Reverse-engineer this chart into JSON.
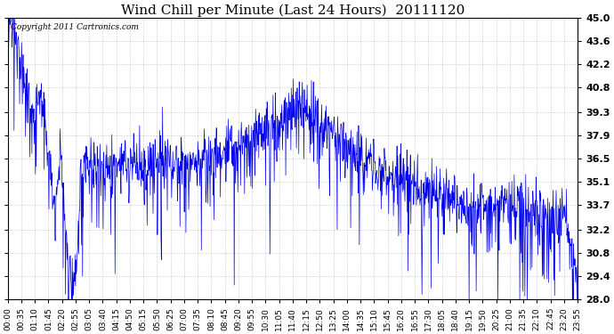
{
  "title": "Wind Chill per Minute (Last 24 Hours)  20111120",
  "copyright_text": "Copyright 2011 Cartronics.com",
  "line_color": "#0000ee",
  "background_color": "#ffffff",
  "plot_bg_color": "#ffffff",
  "grid_color": "#bbbbbb",
  "ylim": [
    28.0,
    45.0
  ],
  "yticks": [
    28.0,
    29.4,
    30.8,
    32.2,
    33.7,
    35.1,
    36.5,
    37.9,
    39.3,
    40.8,
    42.2,
    43.6,
    45.0
  ],
  "xtick_labels": [
    "00:00",
    "00:35",
    "01:10",
    "01:45",
    "02:20",
    "02:55",
    "03:05",
    "03:40",
    "04:15",
    "04:50",
    "05:15",
    "05:50",
    "06:25",
    "07:00",
    "07:35",
    "08:10",
    "08:45",
    "09:20",
    "09:55",
    "10:30",
    "11:05",
    "11:40",
    "12:15",
    "12:50",
    "13:25",
    "14:00",
    "14:35",
    "15:10",
    "15:45",
    "16:20",
    "16:55",
    "17:30",
    "18:05",
    "18:40",
    "19:15",
    "19:50",
    "20:25",
    "21:00",
    "21:35",
    "22:10",
    "22:45",
    "23:20",
    "23:55"
  ],
  "title_fontsize": 11,
  "copyright_fontsize": 6.5,
  "tick_fontsize": 6.5,
  "ytick_fontsize": 8
}
